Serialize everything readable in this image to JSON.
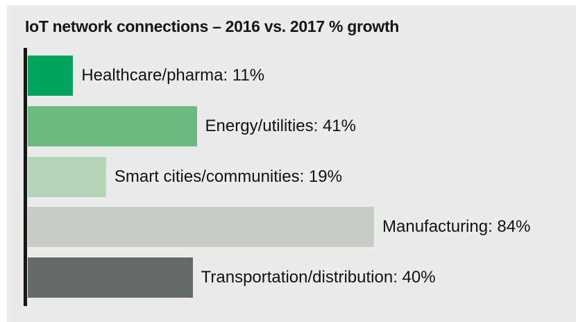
{
  "page": {
    "outer_background": "#ffffff",
    "panel_background": "#EBEBE9"
  },
  "chart_data": {
    "type": "bar",
    "orientation": "horizontal",
    "title": "IoT network connections – 2016 vs. 2017 % growth",
    "categories": [
      "Healthcare/pharma",
      "Energy/utilities",
      "Smart cities/communities",
      "Manufacturing",
      "Transportation/distribution"
    ],
    "values": [
      11,
      41,
      19,
      84,
      40
    ],
    "unit": "%",
    "labels": [
      "Healthcare/pharma: 11%",
      "Energy/utilities: 41%",
      "Smart cities/communities: 19%",
      "Manufacturing: 84%",
      "Transportation/distribution: 40%"
    ],
    "bar_colors": [
      "#00A35C",
      "#6CBA82",
      "#B5D6B6",
      "#C8CDC7",
      "#646A67"
    ],
    "axis_color": "#161616",
    "xlim": [
      0,
      100
    ],
    "grid": false,
    "legend": false,
    "value_labels_position": "right-of-bar"
  }
}
